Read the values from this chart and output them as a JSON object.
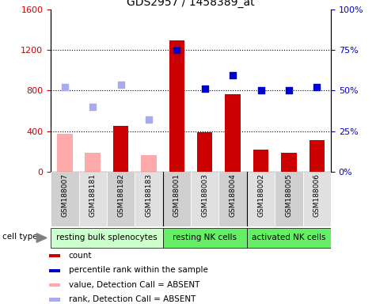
{
  "title": "GDS2957 / 1458389_at",
  "samples": [
    "GSM188007",
    "GSM188181",
    "GSM188182",
    "GSM188183",
    "GSM188001",
    "GSM188003",
    "GSM188004",
    "GSM188002",
    "GSM188005",
    "GSM188006"
  ],
  "bar_values": [
    null,
    null,
    450,
    null,
    1290,
    390,
    760,
    220,
    190,
    310
  ],
  "bar_absent_values": [
    370,
    190,
    null,
    160,
    null,
    null,
    null,
    null,
    null,
    null
  ],
  "scatter_present": [
    null,
    null,
    null,
    null,
    1200,
    820,
    950,
    800,
    800,
    830
  ],
  "scatter_absent": [
    830,
    640,
    860,
    510,
    null,
    null,
    null,
    null,
    null,
    null
  ],
  "ylim_left": [
    0,
    1600
  ],
  "ylim_right": [
    0,
    100
  ],
  "yticks_left": [
    0,
    400,
    800,
    1200,
    1600
  ],
  "yticks_right": [
    0,
    25,
    50,
    75,
    100
  ],
  "yticklabels_left": [
    "0",
    "400",
    "800",
    "1200",
    "1600"
  ],
  "yticklabels_right": [
    "0%",
    "25%",
    "50%",
    "75%",
    "100%"
  ],
  "bar_color_present": "#cc0000",
  "bar_color_absent": "#ffaaaa",
  "scatter_color_present": "#0000cc",
  "scatter_color_absent": "#aaaaee",
  "groups_info": [
    {
      "label": "resting bulk splenocytes",
      "color": "#ccffcc",
      "start": 0,
      "end": 3
    },
    {
      "label": "resting NK cells",
      "color": "#66ee66",
      "start": 4,
      "end": 6
    },
    {
      "label": "activated NK cells",
      "color": "#66ee66",
      "start": 7,
      "end": 9
    }
  ],
  "group_dividers": [
    3.5,
    6.5
  ],
  "legend_items": [
    {
      "label": "count",
      "color": "#cc0000"
    },
    {
      "label": "percentile rank within the sample",
      "color": "#0000cc"
    },
    {
      "label": "value, Detection Call = ABSENT",
      "color": "#ffaaaa"
    },
    {
      "label": "rank, Detection Call = ABSENT",
      "color": "#aaaaee"
    }
  ],
  "cell_type_label": "cell type"
}
